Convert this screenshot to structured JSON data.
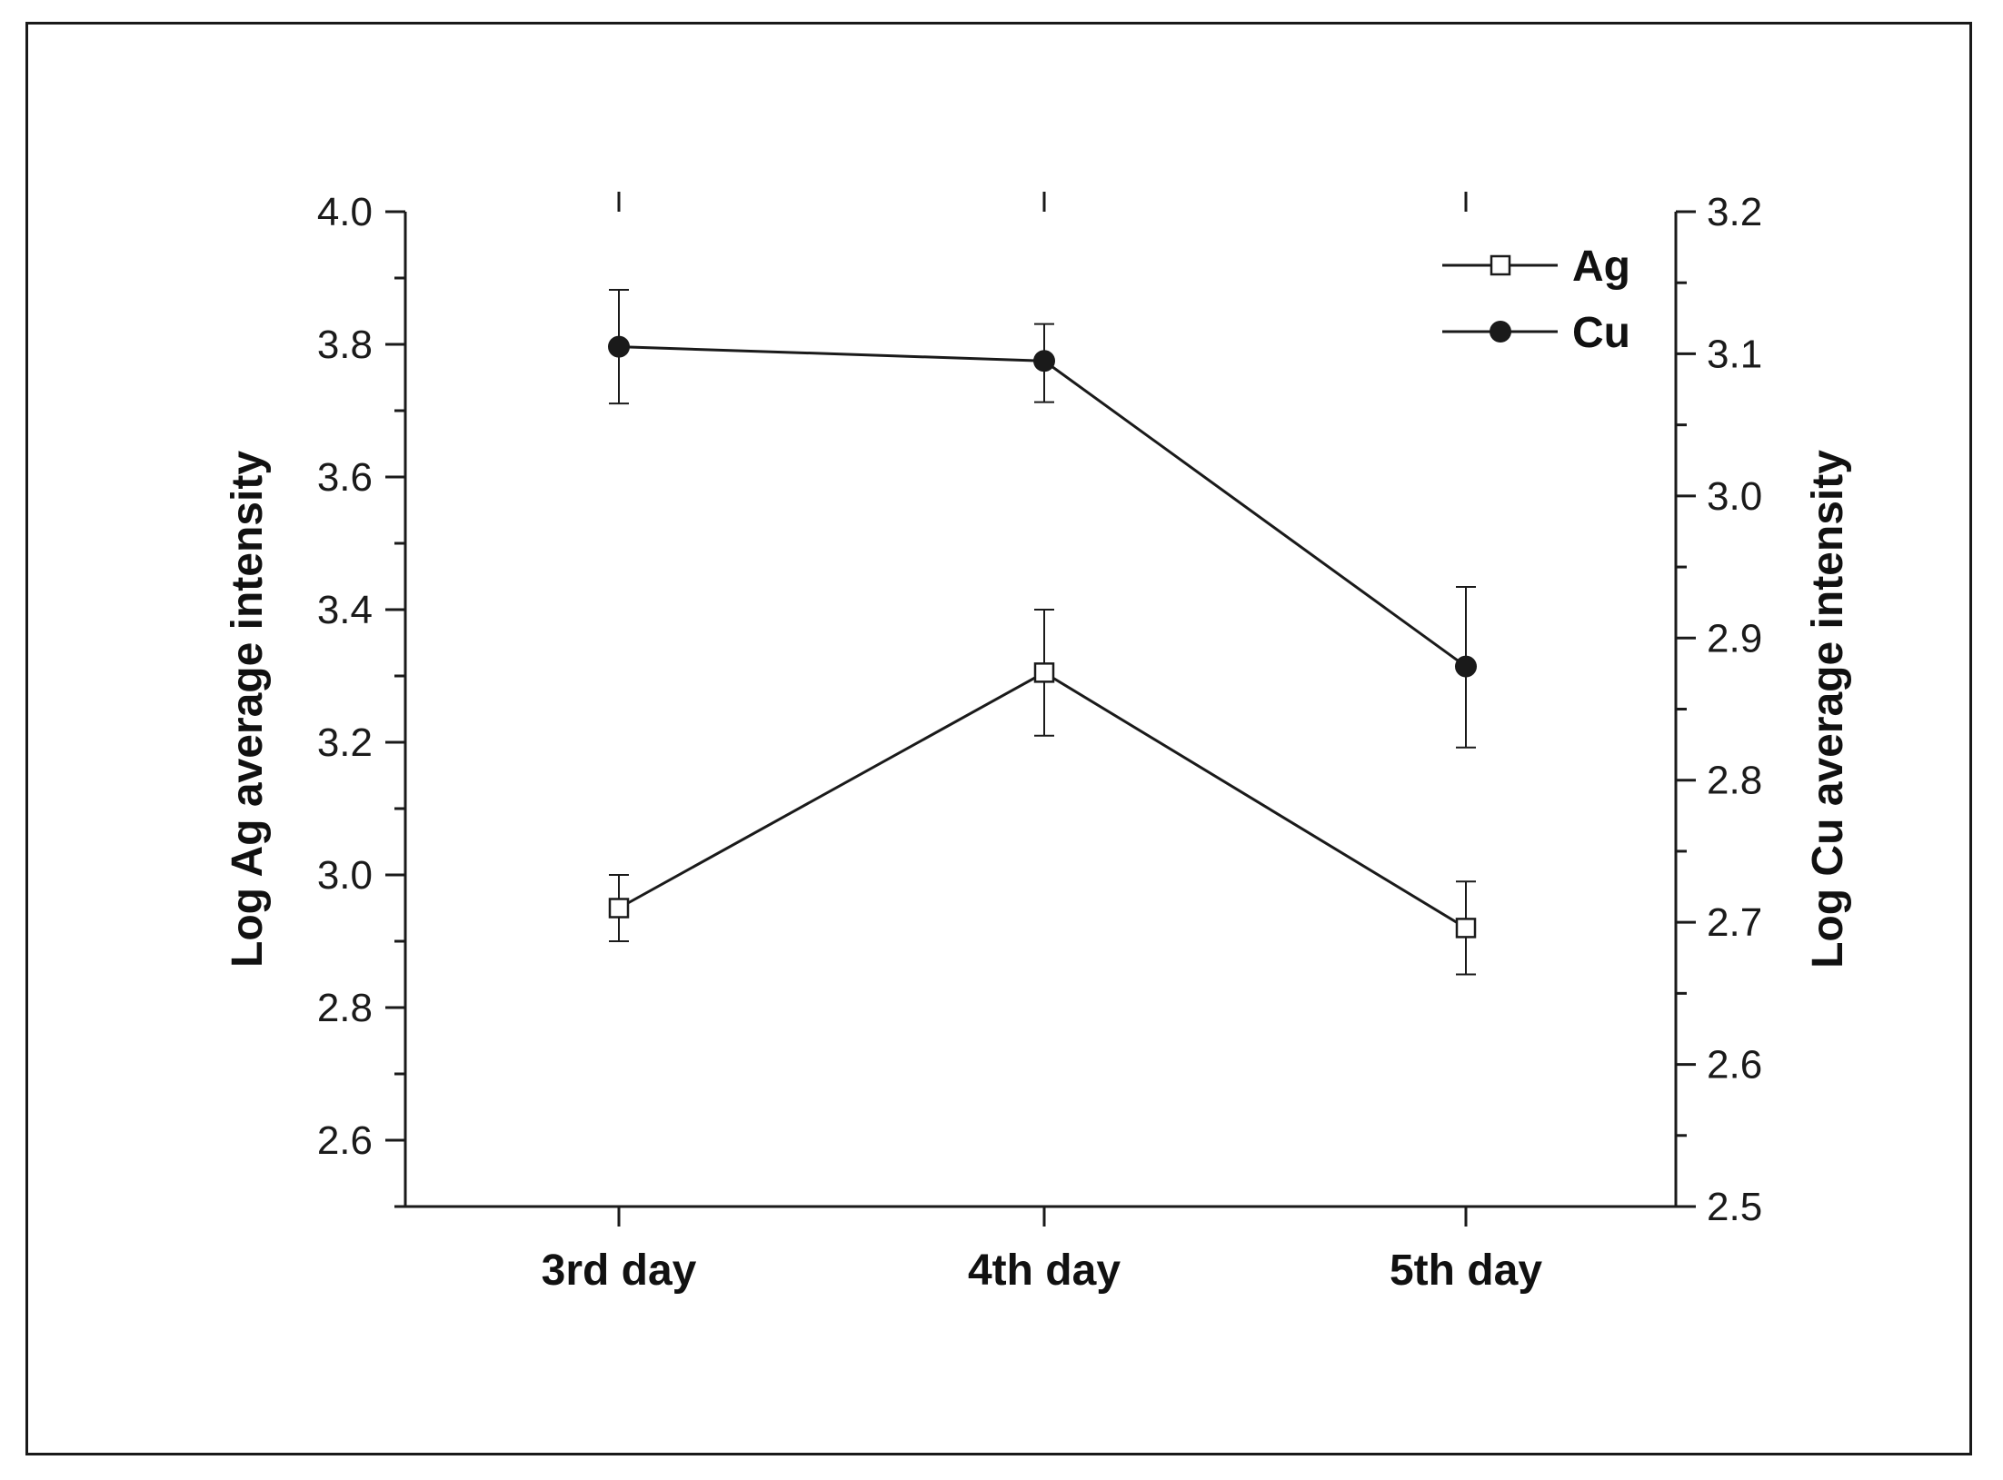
{
  "chart_data": {
    "type": "line",
    "categories": [
      "3rd day",
      "4th day",
      "5th day"
    ],
    "left_axis": {
      "label": "Log Ag average intensity",
      "ylim": [
        2.5,
        4.0
      ],
      "ticks": [
        "2.6",
        "2.8",
        "3.0",
        "3.2",
        "3.4",
        "3.6",
        "3.8",
        "4.0"
      ]
    },
    "right_axis": {
      "label": "Log Cu average intensity",
      "ylim": [
        2.5,
        3.2
      ],
      "ticks": [
        "2.5",
        "2.6",
        "2.7",
        "2.8",
        "2.9",
        "3.0",
        "3.1",
        "3.2"
      ]
    },
    "series": [
      {
        "name": "Ag",
        "axis": "left",
        "marker": "open-square",
        "values": [
          2.95,
          3.305,
          2.92
        ],
        "err_low": [
          2.9,
          3.21,
          2.85
        ],
        "err_high": [
          3.0,
          3.4,
          2.99
        ]
      },
      {
        "name": "Cu",
        "axis": "right",
        "marker": "filled-circle",
        "values": [
          3.105,
          3.095,
          2.88
        ],
        "err_low": [
          3.065,
          3.066,
          2.823
        ],
        "err_high": [
          3.145,
          3.121,
          2.936
        ]
      }
    ],
    "legend_position": "top-right",
    "grid": false
  }
}
